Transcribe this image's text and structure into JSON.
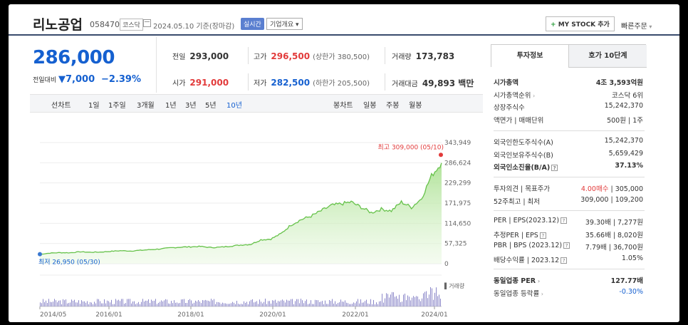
{
  "header": {
    "name": "리노공업",
    "code": "058470",
    "market": "코스닥",
    "date": "2024.05.10 기준(장마감)",
    "live": "실시간",
    "company_info": "기업개요",
    "mystock": "MY STOCK 추가",
    "quick_order": "빠른주문"
  },
  "price": {
    "current": "286,000",
    "change_label": "전일대비",
    "change_value": "7,000",
    "change_pct": "−2.39%"
  },
  "quote": {
    "prev_label": "전일",
    "prev": "293,000",
    "high_label": "고가",
    "high": "296,500",
    "upper_limit": "(상한가 380,500)",
    "volume_label": "거래량",
    "volume": "173,783",
    "open_label": "시가",
    "open": "291,000",
    "low_label": "저가",
    "low": "282,500",
    "lower_limit": "(하한가 205,500)",
    "amount_label": "거래대금",
    "amount": "49,893 백만"
  },
  "tabs": {
    "line_label": "선차트",
    "line_periods": [
      "1일",
      "1주일",
      "3개월",
      "1년",
      "3년",
      "5년",
      "10년"
    ],
    "active": "10년",
    "candle_label": "봉차트",
    "candle_periods": [
      "일봉",
      "주봉",
      "월봉"
    ]
  },
  "chart_data": {
    "type": "area",
    "x": [
      "2014/05",
      "2014/08",
      "2014/11",
      "2015/02",
      "2015/05",
      "2015/08",
      "2015/11",
      "2016/02",
      "2016/05",
      "2016/08",
      "2016/11",
      "2017/02",
      "2017/05",
      "2017/08",
      "2017/11",
      "2018/02",
      "2018/05",
      "2018/08",
      "2018/11",
      "2019/02",
      "2019/05",
      "2019/08",
      "2019/11",
      "2020/02",
      "2020/05",
      "2020/08",
      "2020/11",
      "2021/02",
      "2021/05",
      "2021/08",
      "2021/11",
      "2022/02",
      "2022/05",
      "2022/08",
      "2022/11",
      "2023/02",
      "2023/05",
      "2023/08",
      "2023/11",
      "2024/02",
      "2024/05"
    ],
    "y": [
      27000,
      30000,
      31500,
      31000,
      34000,
      32500,
      33000,
      35000,
      37000,
      36000,
      38000,
      40000,
      42000,
      45000,
      47000,
      48000,
      49000,
      46000,
      47000,
      50000,
      53000,
      55000,
      68000,
      70000,
      85000,
      110000,
      125000,
      135000,
      150000,
      165000,
      170000,
      175000,
      160000,
      145000,
      155000,
      150000,
      175000,
      160000,
      185000,
      250000,
      286000
    ],
    "ylim": [
      0,
      343949
    ],
    "y_ticks": [
      "343,949",
      "286,624",
      "229,299",
      "171,975",
      "114,650",
      "57,325",
      "0"
    ],
    "x_ticks": [
      "2014/05",
      "2016/01",
      "2018/01",
      "2020/01",
      "2022/01",
      "2024/01"
    ],
    "high_label": "최고 309,000 (05/10)",
    "low_label": "최저 26,950 (05/30)",
    "volume_legend": "거래량",
    "line_color": "#66c24a",
    "volume_color": "#8a86c8"
  },
  "side": {
    "tab_invest": "투자정보",
    "tab_ask": "호가 10단계",
    "rows1": [
      {
        "label": "시가총액",
        "value": "4조 3,593억원",
        "bold": true
      },
      {
        "label": "시가총액순위",
        "value": "코스닥 6위",
        "caret": true
      },
      {
        "label": "상장주식수",
        "value": "15,242,370"
      },
      {
        "label": "액면가 | 매매단위",
        "value": "500원 | 1주"
      }
    ],
    "rows2": [
      {
        "label": "외국인한도주식수(A)",
        "value": "15,242,370"
      },
      {
        "label": "외국인보유주식수(B)",
        "value": "5,659,429"
      },
      {
        "label": "외국인소진율(B/A)",
        "value": "37.13%",
        "bold": true,
        "qm": true
      }
    ],
    "rows3": [
      {
        "label": "투자의견 | 목표주가",
        "value_red": "4.00매수",
        "value": " | 305,000"
      },
      {
        "label": "52주최고 | 최저",
        "value": "309,000 | 109,200"
      }
    ],
    "rows4": [
      {
        "label": "PER | EPS(2023.12)",
        "value": "39.30배 | 7,277원",
        "qm": true
      },
      {
        "label": "추정PER | EPS",
        "value": "35.66배 | 8,020원",
        "qm": true
      },
      {
        "label": "PBR | BPS (2023.12)",
        "value": "7.79배 | 36,700원",
        "qm": true
      },
      {
        "label": "배당수익률 | 2023.12",
        "value": "1.05%",
        "qm": true
      }
    ],
    "rows5": [
      {
        "label": "동일업종 PER",
        "value": "127.77배",
        "bold": true,
        "caret": true
      },
      {
        "label": "동일업종 등락률",
        "value": "-0.30%",
        "blue": true,
        "caret": true
      }
    ]
  }
}
